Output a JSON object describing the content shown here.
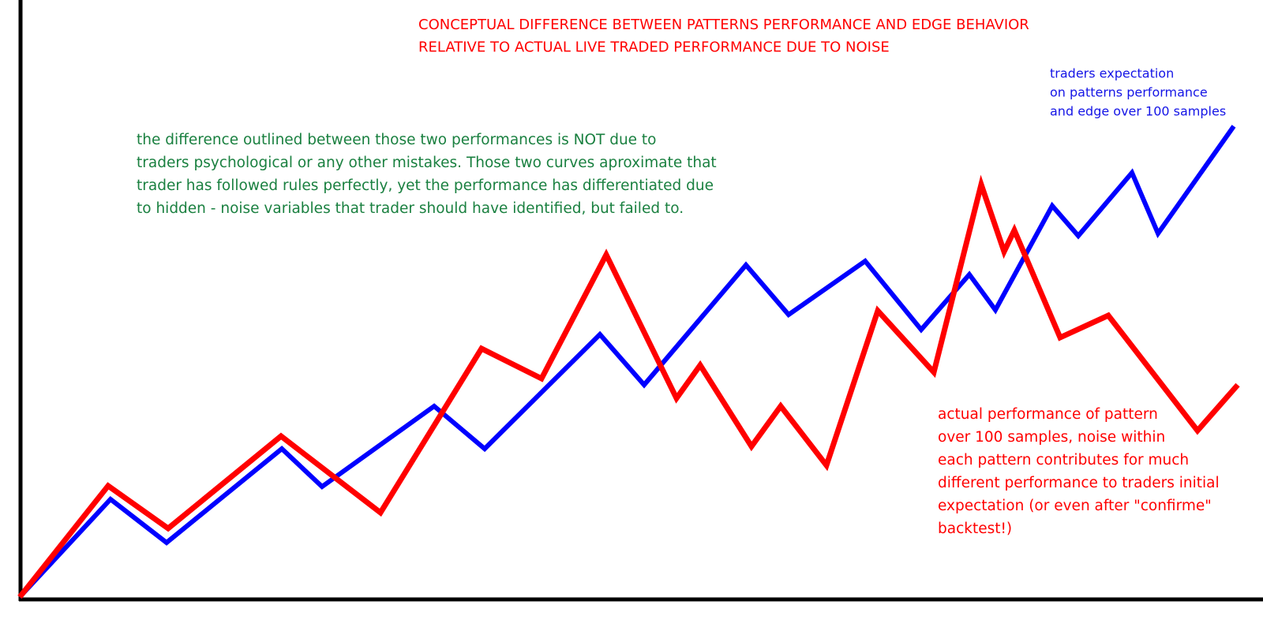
{
  "title": {
    "lines": [
      "CONCEPTUAL DIFFERENCE BETWEEN PATTERNS PERFORMANCE AND EDGE BEHAVIOR",
      "RELATIVE TO ACTUAL LIVE TRADED PERFORMANCE DUE TO NOISE"
    ]
  },
  "expectation_note": {
    "lines": [
      "traders expectation",
      "on patterns performance",
      "and edge over 100 samples"
    ]
  },
  "explanation": {
    "lines": [
      "the difference outlined between those two performances is NOT due to",
      "traders psychological or any other mistakes. Those two curves aproximate that",
      "trader has followed rules perfectly, yet the performance has differentiated due",
      "to hidden - noise variables that trader should have identified, but failed to."
    ]
  },
  "actual_note": {
    "lines": [
      "actual performance of pattern",
      "over 100 samples, noise within",
      "each pattern contributes for much",
      "different performance to traders initial",
      "expectation (or even after \"confirme\"",
      "backtest!)"
    ]
  }
}
